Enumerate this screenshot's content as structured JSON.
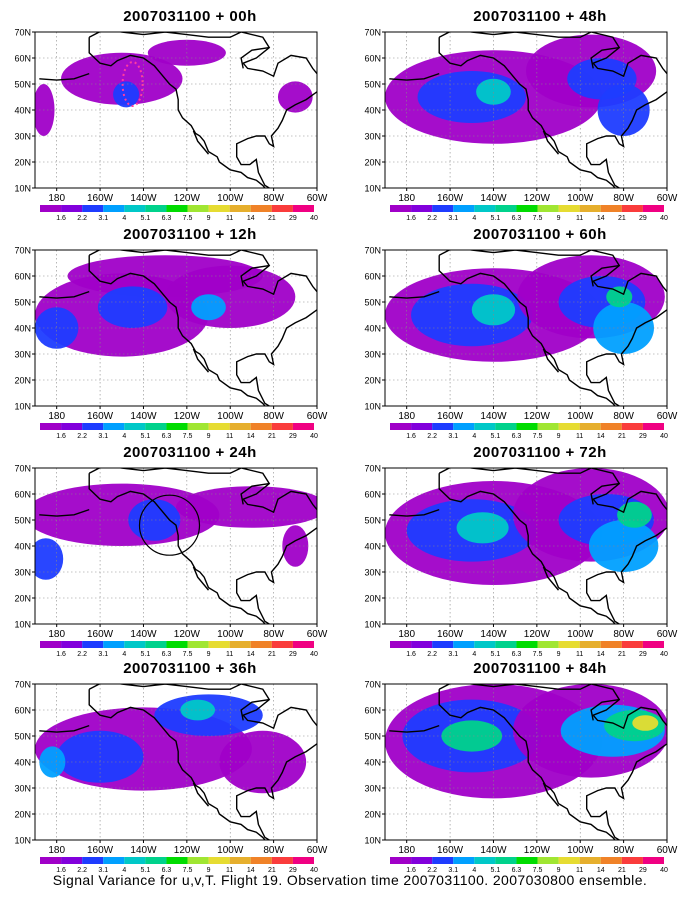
{
  "lat_labels": [
    "70N",
    "60N",
    "50N",
    "40N",
    "30N",
    "20N",
    "10N"
  ],
  "lon_labels": [
    "180",
    "160W",
    "140W",
    "120W",
    "100W",
    "80W",
    "60W"
  ],
  "colorbar": {
    "labels": [
      "1.6",
      "2.2",
      "3.1",
      "4",
      "5.1",
      "6.3",
      "7.5",
      "9",
      "11",
      "14",
      "21",
      "29",
      "40"
    ],
    "colors": [
      "#a000c8",
      "#8200dc",
      "#1e3cff",
      "#00a0ff",
      "#00c8c8",
      "#00d28c",
      "#00dc00",
      "#a0e632",
      "#e6dc32",
      "#e6af2d",
      "#f08228",
      "#fa3c3c",
      "#f00082"
    ]
  },
  "panels": [
    {
      "id": "p00",
      "title": "2007031100 + 00h",
      "level": 0
    },
    {
      "id": "p48",
      "title": "2007031100 + 48h",
      "level": 4
    },
    {
      "id": "p12",
      "title": "2007031100 + 12h",
      "level": 1
    },
    {
      "id": "p60",
      "title": "2007031100 + 60h",
      "level": 5
    },
    {
      "id": "p24",
      "title": "2007031100 + 24h",
      "level": 2
    },
    {
      "id": "p72",
      "title": "2007031100 + 72h",
      "level": 6
    },
    {
      "id": "p36",
      "title": "2007031100 + 36h",
      "level": 3
    },
    {
      "id": "p84",
      "title": "2007031100 + 84h",
      "level": 7
    }
  ],
  "footer": "Signal Variance for u,v,T. Flight 19. Observation time 2007031100. 2007030800 ensemble."
}
